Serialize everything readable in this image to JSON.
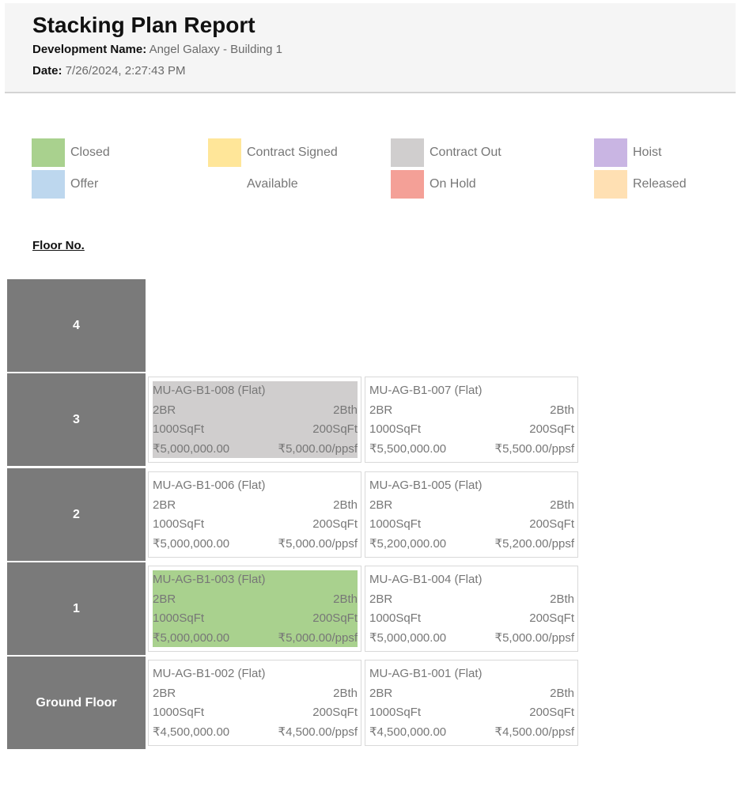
{
  "report": {
    "title": "Stacking Plan Report",
    "development_label": "Development Name:",
    "development_value": "Angel Galaxy - Building 1",
    "date_label": "Date:",
    "date_value": "7/26/2024, 2:27:43 PM"
  },
  "legend": [
    {
      "label": "Closed",
      "color": "#a9d18e"
    },
    {
      "label": "Contract Signed",
      "color": "#ffe699"
    },
    {
      "label": "Contract Out",
      "color": "#d0cece"
    },
    {
      "label": "Hoist",
      "color": "#c9b5e3"
    },
    {
      "label": "Offer",
      "color": "#bdd7ee"
    },
    {
      "label": "Available",
      "color": "#ffffff"
    },
    {
      "label": "On Hold",
      "color": "#f4a097"
    },
    {
      "label": "Released",
      "color": "#ffe0b3"
    }
  ],
  "floor_heading": "Floor No.",
  "floors": [
    {
      "label": "4"
    },
    {
      "label": "3"
    },
    {
      "label": "2"
    },
    {
      "label": "1"
    },
    {
      "label": "Ground Floor"
    }
  ],
  "units": [
    {
      "id": "MU-AG-B1-008 (Flat)",
      "beds": "2BR",
      "baths": "2Bth",
      "area": "1000SqFt",
      "extra_area": "200SqFt",
      "price": "₹5,000,000.00",
      "ppsf": "₹5,000.00/ppsf",
      "status": "Contract Out",
      "color": "#d0cece"
    },
    {
      "id": "MU-AG-B1-007 (Flat)",
      "beds": "2BR",
      "baths": "2Bth",
      "area": "1000SqFt",
      "extra_area": "200SqFt",
      "price": "₹5,500,000.00",
      "ppsf": "₹5,500.00/ppsf",
      "status": "Available",
      "color": "#ffffff"
    },
    {
      "id": "MU-AG-B1-006 (Flat)",
      "beds": "2BR",
      "baths": "2Bth",
      "area": "1000SqFt",
      "extra_area": "200SqFt",
      "price": "₹5,000,000.00",
      "ppsf": "₹5,000.00/ppsf",
      "status": "Available",
      "color": "#ffffff"
    },
    {
      "id": "MU-AG-B1-005 (Flat)",
      "beds": "2BR",
      "baths": "2Bth",
      "area": "1000SqFt",
      "extra_area": "200SqFt",
      "price": "₹5,200,000.00",
      "ppsf": "₹5,200.00/ppsf",
      "status": "Available",
      "color": "#ffffff"
    },
    {
      "id": "MU-AG-B1-003 (Flat)",
      "beds": "2BR",
      "baths": "2Bth",
      "area": "1000SqFt",
      "extra_area": "200SqFt",
      "price": "₹5,000,000.00",
      "ppsf": "₹5,000.00/ppsf",
      "status": "Closed",
      "color": "#a9d18e"
    },
    {
      "id": "MU-AG-B1-004 (Flat)",
      "beds": "2BR",
      "baths": "2Bth",
      "area": "1000SqFt",
      "extra_area": "200SqFt",
      "price": "₹5,000,000.00",
      "ppsf": "₹5,000.00/ppsf",
      "status": "Available",
      "color": "#ffffff"
    },
    {
      "id": "MU-AG-B1-002 (Flat)",
      "beds": "2BR",
      "baths": "2Bth",
      "area": "1000SqFt",
      "extra_area": "200SqFt",
      "price": "₹4,500,000.00",
      "ppsf": "₹4,500.00/ppsf",
      "status": "Available",
      "color": "#ffffff"
    },
    {
      "id": "MU-AG-B1-001 (Flat)",
      "beds": "2BR",
      "baths": "2Bth",
      "area": "1000SqFt",
      "extra_area": "200SqFt",
      "price": "₹4,500,000.00",
      "ppsf": "₹4,500.00/ppsf",
      "status": "Available",
      "color": "#ffffff"
    }
  ]
}
